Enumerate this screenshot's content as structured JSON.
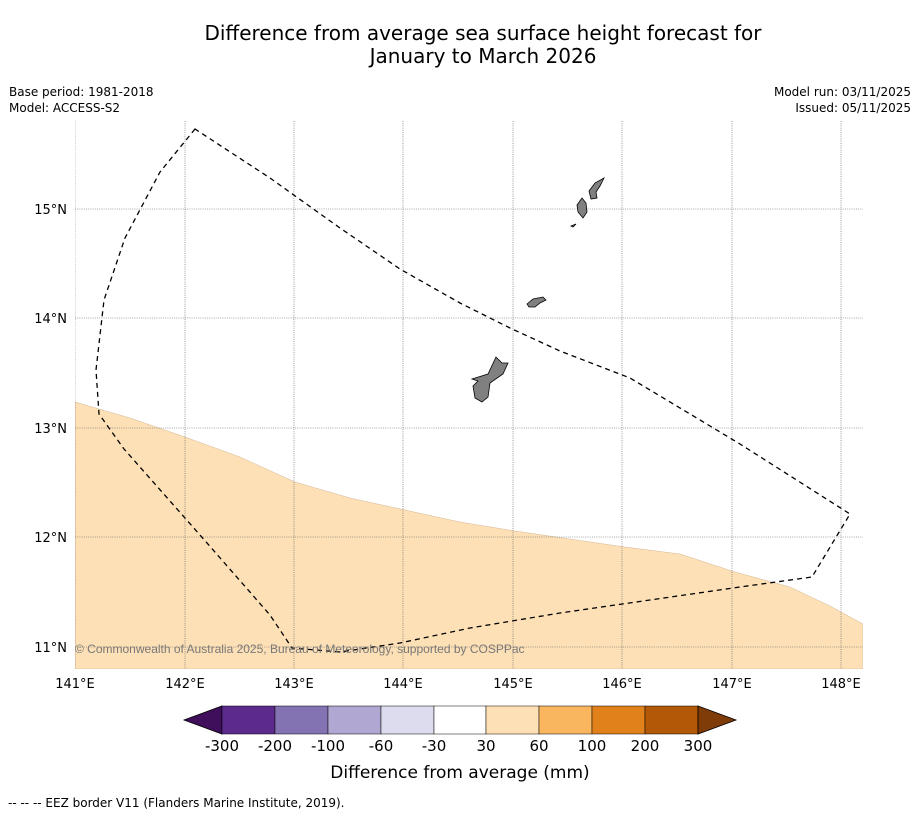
{
  "title_line1": "Difference from average sea surface height forecast for",
  "title_line2": "January to March 2026",
  "base_period": "Base period: 1981-2018",
  "model": "Model: ACCESS-S2",
  "model_run": "Model run: 03/11/2025",
  "issued": "Issued: 05/11/2025",
  "copyright": "© Commonwealth of Australia 2025, Bureau of Meteorology, supported by COSPPac",
  "lon_labels": [
    "141°E",
    "142°E",
    "143°E",
    "144°E",
    "145°E",
    "146°E",
    "147°E",
    "148°E"
  ],
  "lat_labels": [
    "15°N",
    "14°N",
    "13°N",
    "12°N",
    "11°N"
  ],
  "colorbar": {
    "label": "Difference from average (mm)",
    "ticks": [
      "-300",
      "-200",
      "-100",
      "-60",
      "-30",
      "30",
      "60",
      "100",
      "200",
      "300"
    ],
    "colors": [
      "#3f0f5c",
      "#5b2a8a",
      "#8473b2",
      "#b0a8d2",
      "#dcdcee",
      "#ffffff",
      "#fde0b6",
      "#f9b65f",
      "#e0811b",
      "#b35806",
      "#7f3b08"
    ]
  },
  "legend_footer": "-- -- -- EEZ border V11 (Flanders Marine Institute, 2019).",
  "map_data": {
    "lon_range": [
      141,
      148.2
    ],
    "lat_range": [
      10.8,
      15.8
    ],
    "anomaly_region": {
      "value_band": "30 to 60",
      "color": "#fde0b6"
    },
    "islands": [
      "Guam",
      "Rota",
      "Tinian",
      "Saipan"
    ],
    "eez_line_style": "dashed"
  }
}
